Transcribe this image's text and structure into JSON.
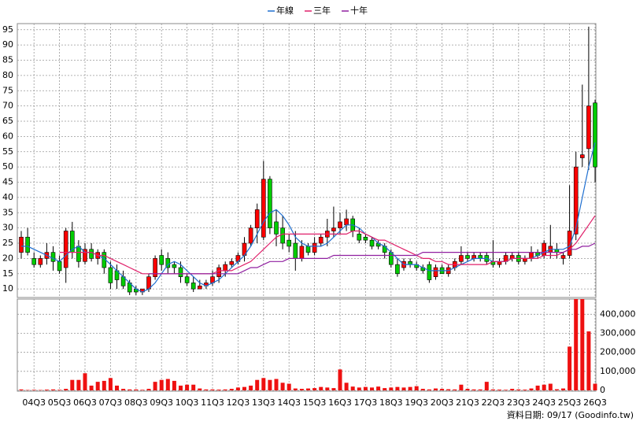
{
  "chart_data": {
    "type": "candlestick",
    "categories": [
      null,
      null,
      "04Q3",
      null,
      null,
      null,
      "05Q3",
      null,
      null,
      null,
      "06Q3",
      null,
      null,
      null,
      "07Q3",
      null,
      null,
      null,
      "08Q3",
      null,
      null,
      null,
      "09Q3",
      null,
      null,
      null,
      "10Q3",
      null,
      null,
      null,
      "11Q3",
      null,
      null,
      null,
      "12Q3",
      null,
      null,
      null,
      "13Q3",
      null,
      null,
      null,
      "14Q3",
      null,
      null,
      null,
      "15Q3",
      null,
      null,
      null,
      "16Q3",
      null,
      null,
      null,
      "17Q3",
      null,
      null,
      null,
      "18Q3",
      null,
      null,
      null,
      "19Q3",
      null,
      null,
      null,
      "20Q3",
      null,
      null,
      null,
      "21Q3",
      null,
      null,
      null,
      "22Q3",
      null,
      null,
      null,
      "23Q3",
      null,
      null,
      null,
      "24Q3",
      null,
      null,
      null,
      "25Q3",
      null,
      null,
      null,
      "26Q3"
    ],
    "open": [
      22,
      27,
      20,
      18,
      20,
      22,
      19,
      17,
      29,
      24,
      19,
      23,
      20,
      22,
      17,
      16,
      14,
      12,
      10,
      9,
      10,
      14,
      21,
      20,
      18,
      17,
      14,
      12,
      10,
      11,
      12,
      14,
      16,
      18,
      19,
      21,
      25,
      30,
      27,
      46,
      32,
      30,
      26,
      25,
      20,
      24,
      22,
      25,
      27,
      29,
      30,
      31,
      33,
      28,
      27,
      26,
      25,
      24,
      22,
      18,
      17,
      19,
      18,
      17,
      18,
      14,
      17,
      15,
      17,
      19,
      21,
      20,
      21,
      21,
      19,
      18,
      19,
      20,
      21,
      19,
      20,
      22,
      21,
      22,
      23,
      20,
      21,
      28,
      53,
      56,
      71
    ],
    "high": [
      29,
      30,
      22,
      21,
      25,
      24,
      21,
      30,
      32,
      26,
      25,
      25,
      23,
      23,
      19,
      18,
      16,
      13,
      11,
      10,
      15,
      21,
      23,
      22,
      19,
      19,
      15,
      14,
      13,
      13,
      16,
      18,
      19,
      20,
      22,
      27,
      31,
      38,
      52,
      47,
      36,
      34,
      28,
      29,
      26,
      25,
      27,
      28,
      33,
      37,
      35,
      36,
      34,
      30,
      28,
      27,
      26,
      25,
      23,
      20,
      20,
      20,
      19,
      18,
      19,
      18,
      18,
      18,
      20,
      24,
      22,
      22,
      22,
      22,
      26,
      20,
      22,
      22,
      22,
      21,
      24,
      23,
      26,
      31,
      25,
      22,
      44,
      55,
      77,
      96,
      72
    ],
    "low": [
      20,
      21,
      17,
      17,
      18,
      16,
      15,
      12,
      20,
      17,
      18,
      19,
      18,
      15,
      10,
      10,
      10,
      8,
      8,
      8,
      9,
      13,
      16,
      15,
      15,
      12,
      11,
      9,
      10,
      10,
      11,
      12,
      14,
      17,
      18,
      19,
      24,
      25,
      26,
      28,
      24,
      23,
      22,
      16,
      19,
      21,
      21,
      24,
      24,
      27,
      28,
      29,
      27,
      25,
      25,
      23,
      23,
      20,
      17,
      14,
      16,
      17,
      16,
      15,
      12,
      13,
      15,
      14,
      16,
      18,
      19,
      19,
      19,
      18,
      17,
      17,
      18,
      19,
      18,
      18,
      19,
      20,
      20,
      20,
      20,
      18,
      20,
      26,
      50,
      49,
      45
    ],
    "close": [
      27,
      22,
      18,
      20,
      22,
      19,
      16,
      29,
      22,
      19,
      23,
      20,
      22,
      17,
      12,
      13,
      11,
      9,
      9,
      10,
      14,
      20,
      18,
      17,
      17,
      14,
      12,
      10,
      11,
      12,
      14,
      17,
      18,
      19,
      21,
      25,
      30,
      36,
      46,
      30,
      28,
      25,
      24,
      20,
      24,
      22,
      25,
      27,
      29,
      30,
      32,
      33,
      29,
      26,
      26,
      24,
      24,
      22,
      18,
      15,
      19,
      18,
      17,
      16,
      13,
      17,
      15,
      17,
      19,
      21,
      20,
      21,
      20,
      19,
      18,
      19,
      21,
      21,
      19,
      20,
      22,
      21,
      25,
      24,
      22,
      21,
      29,
      50,
      54,
      70,
      50
    ],
    "up_color": "#ff0000",
    "down_color": "#00cc00",
    "ylim": [
      7.2,
      97
    ],
    "yticks": [
      10,
      15,
      20,
      25,
      30,
      35,
      40,
      45,
      50,
      55,
      60,
      65,
      70,
      75,
      80,
      85,
      90,
      95
    ],
    "grid": true,
    "lines": [
      {
        "name": "年線",
        "color": "#1f6fd0",
        "values": [
          24,
          24,
          23,
          22,
          21,
          20,
          19,
          21,
          23,
          24,
          22,
          22,
          21,
          20,
          18,
          16,
          14,
          12,
          10,
          9,
          10,
          12,
          15,
          18,
          19,
          18,
          16,
          14,
          12,
          11,
          12,
          13,
          15,
          17,
          19,
          21,
          24,
          28,
          32,
          35,
          36,
          34,
          31,
          27,
          25,
          24,
          24,
          24,
          25,
          27,
          29,
          31,
          31,
          30,
          28,
          27,
          25,
          24,
          22,
          20,
          18,
          18,
          18,
          17,
          16,
          16,
          16,
          16,
          17,
          18,
          19,
          20,
          20,
          20,
          19,
          19,
          19,
          20,
          20,
          20,
          20,
          21,
          22,
          23,
          23,
          23,
          24,
          30,
          40,
          50,
          58
        ]
      },
      {
        "name": "三年",
        "color": "#e0206a",
        "values": [
          null,
          null,
          null,
          null,
          null,
          null,
          22,
          22,
          22,
          22,
          22,
          22,
          21,
          21,
          20,
          19,
          18,
          17,
          16,
          15,
          15,
          15,
          15,
          15,
          15,
          15,
          15,
          15,
          15,
          15,
          15,
          16,
          16,
          16,
          17,
          18,
          19,
          21,
          23,
          25,
          27,
          28,
          28,
          28,
          28,
          28,
          28,
          28,
          28,
          28,
          28,
          28,
          29,
          29,
          28,
          27,
          26,
          26,
          25,
          24,
          23,
          22,
          21,
          20,
          20,
          19,
          19,
          18,
          18,
          18,
          18,
          18,
          18,
          18,
          19,
          19,
          19,
          20,
          20,
          20,
          20,
          20,
          21,
          21,
          21,
          22,
          23,
          25,
          28,
          31,
          34
        ]
      },
      {
        "name": "十年",
        "color": "#9020a0",
        "values": [
          null,
          null,
          null,
          null,
          null,
          null,
          null,
          null,
          null,
          null,
          null,
          null,
          null,
          null,
          null,
          null,
          null,
          null,
          null,
          null,
          15,
          15,
          15,
          15,
          15,
          15,
          15,
          15,
          15,
          15,
          15,
          15,
          15,
          15,
          15,
          16,
          17,
          17,
          18,
          19,
          19,
          19,
          20,
          20,
          20,
          20,
          20,
          20,
          20,
          21,
          21,
          21,
          21,
          21,
          21,
          21,
          21,
          21,
          21,
          21,
          21,
          21,
          21,
          22,
          22,
          22,
          22,
          22,
          22,
          22,
          22,
          22,
          22,
          22,
          22,
          22,
          22,
          22,
          22,
          22,
          22,
          22,
          22,
          22,
          22,
          22,
          23,
          23,
          24,
          24,
          25
        ]
      }
    ],
    "volume": {
      "color": "#ee1111",
      "ylim": [
        0,
        480000
      ],
      "values": [
        5000,
        2000,
        3000,
        2000,
        4000,
        5000,
        3000,
        8000,
        55000,
        55000,
        90000,
        25000,
        45000,
        50000,
        65000,
        25000,
        8000,
        5000,
        5000,
        3000,
        8000,
        45000,
        55000,
        60000,
        50000,
        25000,
        30000,
        30000,
        10000,
        5000,
        5000,
        4000,
        5000,
        8000,
        15000,
        18000,
        25000,
        55000,
        65000,
        55000,
        60000,
        40000,
        35000,
        10000,
        8000,
        10000,
        12000,
        18000,
        15000,
        12000,
        110000,
        40000,
        20000,
        15000,
        18000,
        15000,
        20000,
        12000,
        15000,
        18000,
        15000,
        18000,
        22000,
        8000,
        5000,
        10000,
        8000,
        6000,
        5000,
        30000,
        8000,
        5000,
        5000,
        45000,
        5000,
        4000,
        3000,
        8000,
        5000,
        4000,
        10000,
        25000,
        30000,
        35000,
        6000,
        10000,
        230000,
        480000,
        480000,
        310000,
        35000
      ],
      "yticks": [
        0,
        {
          "value": 100000,
          "label": "100,000"
        },
        {
          "value": 200000,
          "label": "200,000"
        },
        {
          "value": 300000,
          "label": "300,000"
        },
        {
          "value": 400000,
          "label": "400,000"
        }
      ]
    },
    "footnote": "資料日期: 09/17  (Goodinfo.tw)"
  }
}
